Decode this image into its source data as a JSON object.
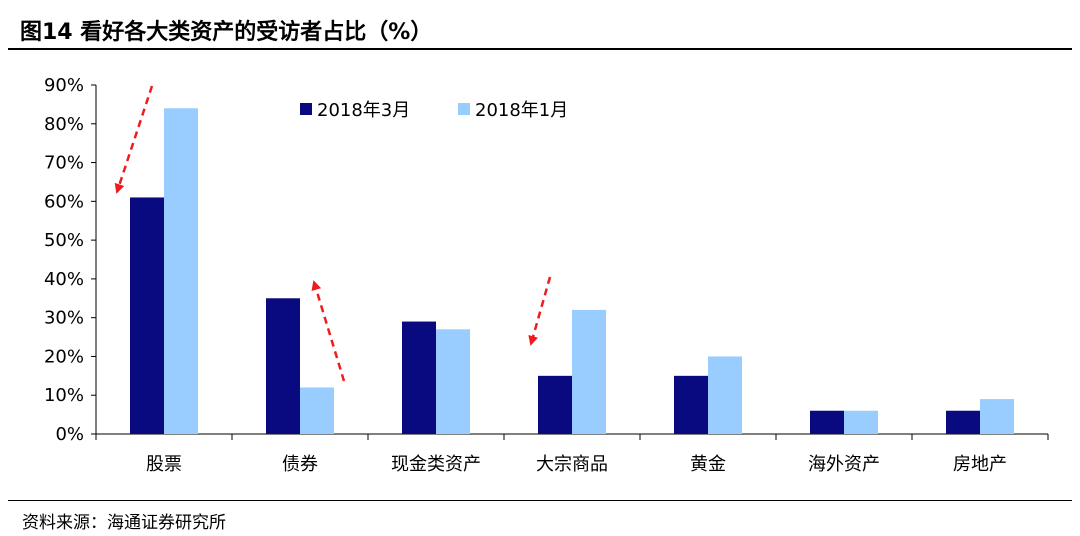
{
  "title": "图14 看好各大类资产的受访者占比（%）",
  "source": "资料来源：海通证券研究所",
  "colors": {
    "series1": "#0a0a80",
    "series2": "#99ccff",
    "arrow": "#ee1c1c"
  },
  "chart_data": {
    "type": "bar",
    "categories": [
      "股票",
      "债券",
      "现金类资产",
      "大宗商品",
      "黄金",
      "海外资产",
      "房地产"
    ],
    "series": [
      {
        "name": "2018年3月",
        "values": [
          61,
          35,
          29,
          15,
          15,
          6,
          6
        ]
      },
      {
        "name": "2018年1月",
        "values": [
          84,
          12,
          27,
          32,
          20,
          6,
          9
        ]
      }
    ],
    "ylim": [
      0,
      90
    ],
    "yticks": [
      0,
      10,
      20,
      30,
      40,
      50,
      60,
      70,
      80,
      90
    ],
    "ytick_labels": [
      "0%",
      "10%",
      "20%",
      "30%",
      "40%",
      "50%",
      "60%",
      "70%",
      "80%",
      "90%"
    ],
    "grid": false,
    "legend": "top-center",
    "annotations": [
      {
        "category": "股票",
        "direction": "down"
      },
      {
        "category": "债券",
        "direction": "up"
      },
      {
        "category": "大宗商品",
        "direction": "down"
      }
    ]
  }
}
